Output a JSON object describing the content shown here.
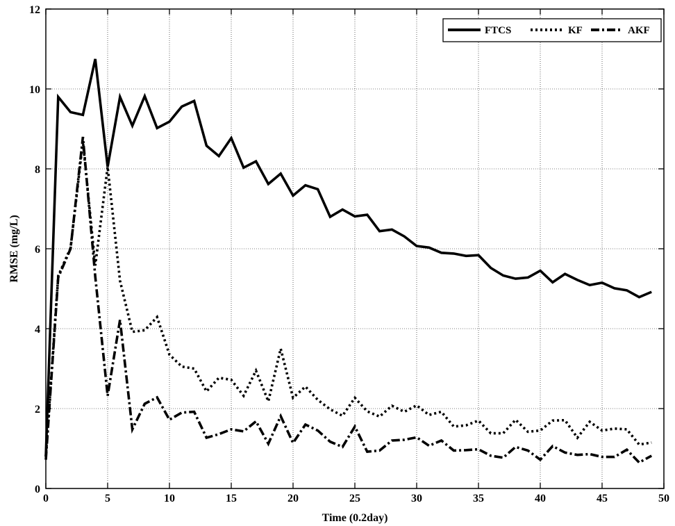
{
  "chart_data": {
    "type": "line",
    "xlabel": "Time (0.2day)",
    "ylabel": "RMSE (mg/L)",
    "xlim": [
      0,
      50
    ],
    "ylim": [
      0,
      12
    ],
    "xticks": [
      0,
      5,
      10,
      15,
      20,
      25,
      30,
      35,
      40,
      45,
      50
    ],
    "yticks": [
      0,
      2,
      4,
      6,
      8,
      10,
      12
    ],
    "grid": true,
    "legend_position": "top-right",
    "x": [
      0,
      1,
      2,
      3,
      4,
      5,
      6,
      7,
      8,
      9,
      10,
      11,
      12,
      13,
      14,
      15,
      16,
      17,
      18,
      19,
      20,
      21,
      22,
      23,
      24,
      25,
      26,
      27,
      28,
      29,
      30,
      31,
      32,
      33,
      34,
      35,
      36,
      37,
      38,
      39,
      40,
      41,
      42,
      43,
      44,
      45,
      46,
      47,
      48,
      49
    ],
    "series": [
      {
        "name": "FTCS",
        "style": "solid",
        "color": "#000000",
        "values": [
          0.8,
          9.8,
          9.42,
          9.35,
          10.75,
          8.05,
          9.8,
          9.08,
          9.82,
          9.02,
          9.18,
          9.56,
          9.7,
          8.58,
          8.32,
          8.77,
          8.03,
          8.19,
          7.62,
          7.88,
          7.33,
          7.59,
          7.49,
          6.8,
          6.98,
          6.81,
          6.85,
          6.44,
          6.48,
          6.31,
          6.07,
          6.03,
          5.9,
          5.88,
          5.82,
          5.84,
          5.52,
          5.33,
          5.25,
          5.28,
          5.45,
          5.16,
          5.37,
          5.22,
          5.09,
          5.15,
          5.01,
          4.96,
          4.79,
          4.92
        ]
      },
      {
        "name": "KF",
        "style": "dotted",
        "color": "#000000",
        "values": [
          0.8,
          5.32,
          6.02,
          8.68,
          5.58,
          8.05,
          5.2,
          3.92,
          3.96,
          4.29,
          3.35,
          3.05,
          3.0,
          2.43,
          2.77,
          2.72,
          2.32,
          2.95,
          2.18,
          3.5,
          2.27,
          2.55,
          2.22,
          1.98,
          1.82,
          2.27,
          1.93,
          1.8,
          2.07,
          1.92,
          2.08,
          1.84,
          1.92,
          1.55,
          1.58,
          1.7,
          1.38,
          1.38,
          1.72,
          1.42,
          1.45,
          1.7,
          1.71,
          1.27,
          1.67,
          1.45,
          1.5,
          1.48,
          1.1,
          1.15
        ]
      },
      {
        "name": "AKF",
        "style": "dashdot",
        "color": "#000000",
        "values": [
          0.72,
          5.28,
          6.0,
          8.8,
          5.3,
          2.32,
          4.22,
          1.48,
          2.12,
          2.28,
          1.72,
          1.9,
          1.92,
          1.27,
          1.36,
          1.48,
          1.43,
          1.68,
          1.12,
          1.81,
          1.14,
          1.6,
          1.45,
          1.17,
          1.04,
          1.55,
          0.92,
          0.95,
          1.2,
          1.22,
          1.28,
          1.07,
          1.2,
          0.95,
          0.96,
          0.98,
          0.82,
          0.77,
          1.04,
          0.95,
          0.72,
          1.06,
          0.9,
          0.84,
          0.86,
          0.79,
          0.79,
          0.97,
          0.65,
          0.82
        ]
      }
    ]
  }
}
